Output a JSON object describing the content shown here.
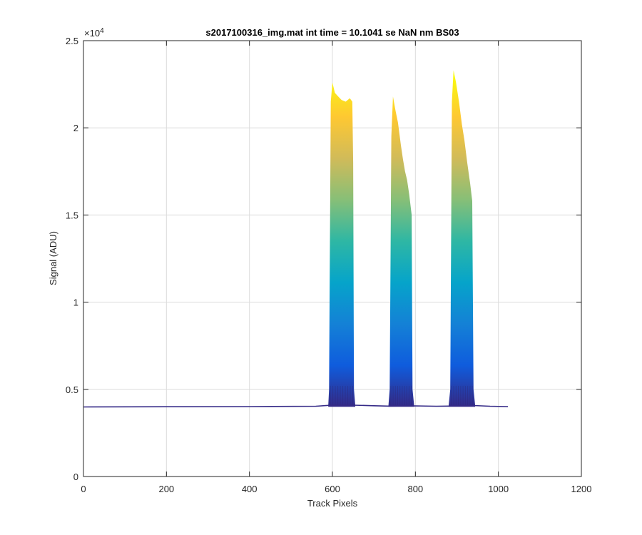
{
  "chart_data": {
    "type": "area",
    "title": "s2017100316_img.mat int time = 10.1041 se  NaN nm BS03",
    "xlabel": "Track Pixels",
    "ylabel": "Signal (ADU)",
    "xlim": [
      0,
      1200
    ],
    "ylim": [
      0,
      25000
    ],
    "x_ticks": [
      0,
      200,
      400,
      600,
      800,
      1000,
      1200
    ],
    "x_tick_labels": [
      "0",
      "200",
      "400",
      "600",
      "800",
      "1000",
      "1200"
    ],
    "y_ticks": [
      0,
      5000,
      10000,
      15000,
      20000,
      25000
    ],
    "y_tick_labels": [
      "0",
      "0.5",
      "1",
      "1.5",
      "2",
      "2.5"
    ],
    "y_exponent_label": "×10",
    "y_exponent_power": "4",
    "grid": true,
    "colormap": [
      "#352a87",
      "#0f5cdd",
      "#1481d6",
      "#06a4ca",
      "#2eb7a4",
      "#87bf77",
      "#d1bb59",
      "#fec832",
      "#f9fb0e"
    ],
    "baseline": [
      [
        0,
        3990
      ],
      [
        200,
        4000
      ],
      [
        400,
        4010
      ],
      [
        560,
        4030
      ],
      [
        590,
        4080
      ],
      [
        650,
        4090
      ],
      [
        700,
        4060
      ],
      [
        735,
        4040
      ],
      [
        800,
        4050
      ],
      [
        850,
        4030
      ],
      [
        880,
        4040
      ],
      [
        940,
        4070
      ],
      [
        980,
        4030
      ],
      [
        1023,
        4010
      ]
    ],
    "peaks": [
      {
        "outline": [
          [
            590,
            4080
          ],
          [
            592,
            5000
          ],
          [
            596,
            21500
          ],
          [
            600,
            22600
          ],
          [
            606,
            22000
          ],
          [
            614,
            21800
          ],
          [
            622,
            21600
          ],
          [
            632,
            21500
          ],
          [
            642,
            21700
          ],
          [
            648,
            21500
          ],
          [
            650,
            18000
          ],
          [
            652,
            5000
          ],
          [
            655,
            4090
          ]
        ]
      },
      {
        "outline": [
          [
            735,
            4040
          ],
          [
            738,
            5000
          ],
          [
            742,
            19500
          ],
          [
            746,
            21800
          ],
          [
            752,
            21000
          ],
          [
            758,
            20300
          ],
          [
            765,
            19000
          ],
          [
            770,
            18200
          ],
          [
            775,
            17500
          ],
          [
            780,
            17000
          ],
          [
            785,
            16200
          ],
          [
            791,
            15000
          ],
          [
            793,
            5000
          ],
          [
            797,
            4050
          ]
        ]
      },
      {
        "outline": [
          [
            880,
            4040
          ],
          [
            884,
            5000
          ],
          [
            888,
            21500
          ],
          [
            892,
            23300
          ],
          [
            898,
            22600
          ],
          [
            905,
            21500
          ],
          [
            912,
            20200
          ],
          [
            918,
            19300
          ],
          [
            925,
            18000
          ],
          [
            932,
            16800
          ],
          [
            937,
            15800
          ],
          [
            940,
            5000
          ],
          [
            944,
            4070
          ]
        ]
      }
    ]
  }
}
